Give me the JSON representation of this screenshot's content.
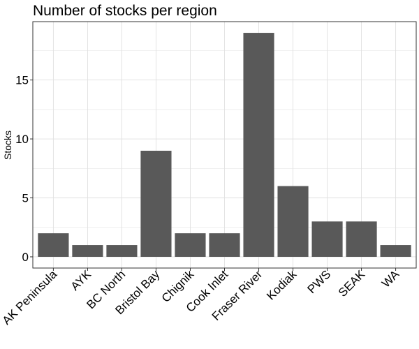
{
  "chart_data": {
    "type": "bar",
    "title": "Number of stocks per region",
    "xlabel": "",
    "ylabel": "Stocks",
    "categories": [
      "AK Peninsula",
      "AYK",
      "BC North",
      "Bristol Bay",
      "Chignik",
      "Cook Inlet",
      "Fraser River",
      "Kodiak",
      "PWS",
      "SEAK",
      "WA"
    ],
    "values": [
      2,
      1,
      1,
      9,
      2,
      2,
      19,
      6,
      3,
      3,
      1
    ],
    "yticks": [
      0,
      5,
      10,
      15
    ],
    "ylim": [
      -0.95,
      19.95
    ],
    "grid": true,
    "bar_color": "#595959",
    "grid_color": "#e0e0e0",
    "theme": "bw"
  }
}
